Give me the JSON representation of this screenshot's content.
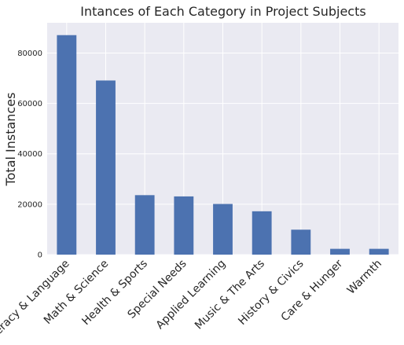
{
  "chart_data": {
    "type": "bar",
    "title": "Intances of Each Category in Project Subjects",
    "xlabel": "",
    "ylabel": "Total Instances",
    "categories": [
      "Literacy & Language",
      "Math & Science",
      "Health & Sports",
      "Special Needs",
      "Applied Learning",
      "Music & The Arts",
      "History & Civics",
      "Care & Hunger",
      "Warmth"
    ],
    "values": [
      87100,
      69100,
      23600,
      23100,
      20100,
      17200,
      9900,
      2300,
      2300
    ],
    "ylim": [
      0,
      92000
    ],
    "yticks": [
      0,
      20000,
      40000,
      60000,
      80000
    ],
    "ytick_labels": [
      "0",
      "20000",
      "40000",
      "60000",
      "80000"
    ],
    "grid": true,
    "colors": {
      "bar": "#4c72b0",
      "plot_background": "#eaeaf2",
      "grid": "#ffffff",
      "text": "#262626"
    }
  }
}
